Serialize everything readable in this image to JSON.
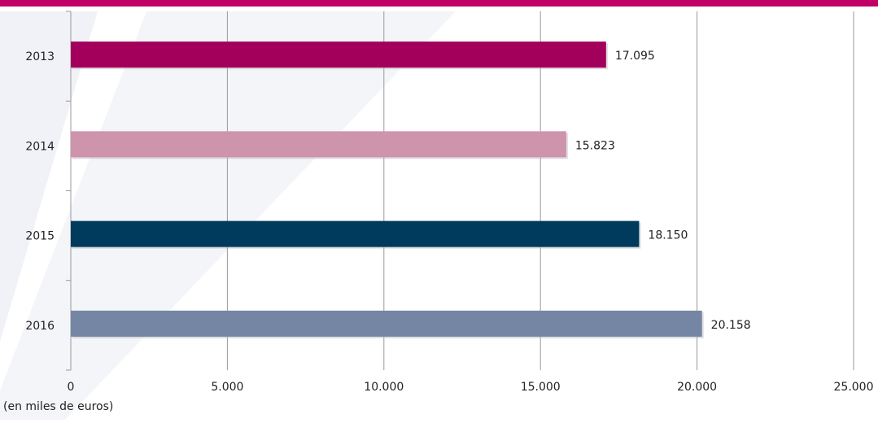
{
  "chart_data": {
    "type": "bar",
    "orientation": "horizontal",
    "categories": [
      "2013",
      "2014",
      "2015",
      "2016"
    ],
    "values": [
      17095,
      15823,
      18150,
      20158
    ],
    "value_labels": [
      "17.095",
      "15.823",
      "18.150",
      "20.158"
    ],
    "colors": [
      "#a3005c",
      "#cd94ac",
      "#003a5c",
      "#7486a3"
    ],
    "xlim": [
      0,
      25000
    ],
    "xticks": [
      0,
      {
        "value": 5000,
        "label": "5.000"
      },
      {
        "value": 10000,
        "label": "10.000"
      },
      {
        "value": 15000,
        "label": "15.000"
      },
      {
        "value": 20000,
        "label": "20.000"
      },
      {
        "value": 25000,
        "label": "25.000"
      }
    ],
    "x_label": "(en miles de euros)",
    "grid": true
  }
}
